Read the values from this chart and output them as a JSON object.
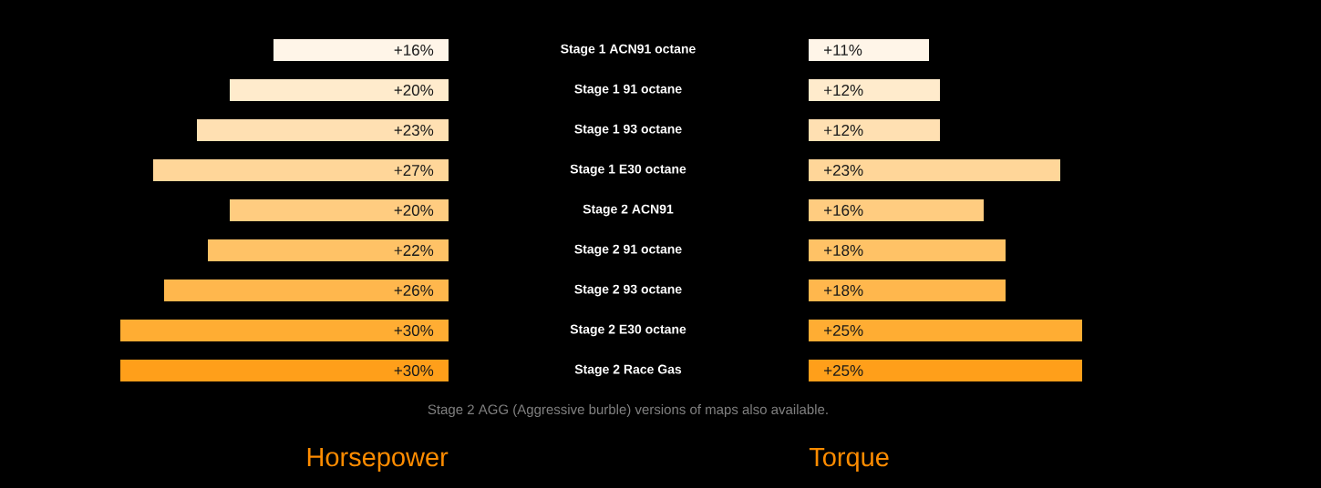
{
  "chart_data": [
    {
      "type": "bar",
      "orientation": "horizontal",
      "title": "Horsepower",
      "categories": [
        "Stage 1 ACN91 octane",
        "Stage 1 91 octane",
        "Stage 1 93 octane",
        "Stage 1 E30 octane",
        "Stage 2 ACN91",
        "Stage 2 91 octane",
        "Stage 2 93 octane",
        "Stage 2 E30 octane",
        "Stage 2 Race Gas"
      ],
      "values": [
        16,
        20,
        23,
        27,
        20,
        22,
        26,
        30,
        30
      ],
      "value_labels": [
        "+16%",
        "+20%",
        "+23%",
        "+27%",
        "+20%",
        "+22%",
        "+26%",
        "+30%",
        "+30%"
      ],
      "colors": [
        "#fff5e8",
        "#ffebcc",
        "#ffe0b2",
        "#ffd699",
        "#ffcc80",
        "#ffc266",
        "#ffb74d",
        "#ffad33",
        "#ff9f1a"
      ],
      "tick_labels": false
    },
    {
      "type": "bar",
      "orientation": "horizontal",
      "title": "Torque",
      "categories": [
        "Stage 1 ACN91 octane",
        "Stage 1 91 octane",
        "Stage 1 93 octane",
        "Stage 1 E30 octane",
        "Stage 2 ACN91",
        "Stage 2 91 octane",
        "Stage 2 93 octane",
        "Stage 2 E30 octane",
        "Stage 2 Race Gas"
      ],
      "values": [
        11,
        12,
        12,
        23,
        16,
        18,
        18,
        25,
        25
      ],
      "value_labels": [
        "+11%",
        "+12%",
        "+12%",
        "+23%",
        "+16%",
        "+18%",
        "+18%",
        "+25%",
        "+25%"
      ],
      "colors": [
        "#fff5e8",
        "#ffebcc",
        "#ffe0b2",
        "#ffd699",
        "#ffcc80",
        "#ffc266",
        "#ffb74d",
        "#ffad33",
        "#ff9f1a"
      ],
      "tick_labels": "y",
      "annotations": [
        "Stage 2 AGG (Aggressive burble) versions of maps also available."
      ]
    }
  ]
}
